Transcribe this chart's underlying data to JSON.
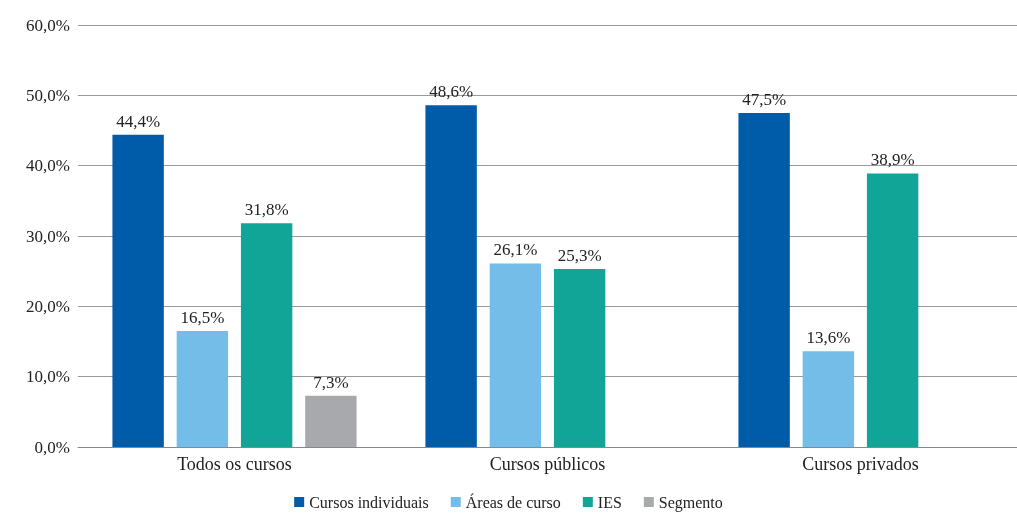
{
  "chart_data": {
    "type": "bar",
    "categories": [
      "Todos os cursos",
      "Cursos públicos",
      "Cursos privados"
    ],
    "series": [
      {
        "name": "Cursos individuais",
        "color": "#005ba9",
        "values": [
          44.4,
          48.6,
          47.5
        ],
        "value_labels": [
          "44,4%",
          "48,6%",
          "47,5%"
        ]
      },
      {
        "name": "Áreas de curso",
        "color": "#74bde8",
        "values": [
          16.5,
          26.1,
          13.6
        ],
        "value_labels": [
          "16,5%",
          "26,1%",
          "13,6%"
        ]
      },
      {
        "name": "IES",
        "color": "#10a597",
        "values": [
          31.8,
          25.3,
          38.9
        ],
        "value_labels": [
          "31,8%",
          "25,3%",
          "38,9%"
        ]
      },
      {
        "name": "Segmento",
        "color": "#a7a9ac",
        "values": [
          7.3,
          null,
          null
        ],
        "value_labels": [
          "7,3%",
          null,
          null
        ]
      }
    ],
    "ylim": [
      0,
      60
    ],
    "yticks": [
      {
        "value": 0,
        "label": "0,0%"
      },
      {
        "value": 10,
        "label": "10,0%"
      },
      {
        "value": 20,
        "label": "20,0%"
      },
      {
        "value": 30,
        "label": "30,0%"
      },
      {
        "value": 40,
        "label": "40,0%"
      },
      {
        "value": 50,
        "label": "50,0%"
      },
      {
        "value": 60,
        "label": "60,0%"
      }
    ],
    "grid": "y",
    "legend": "bottom"
  }
}
